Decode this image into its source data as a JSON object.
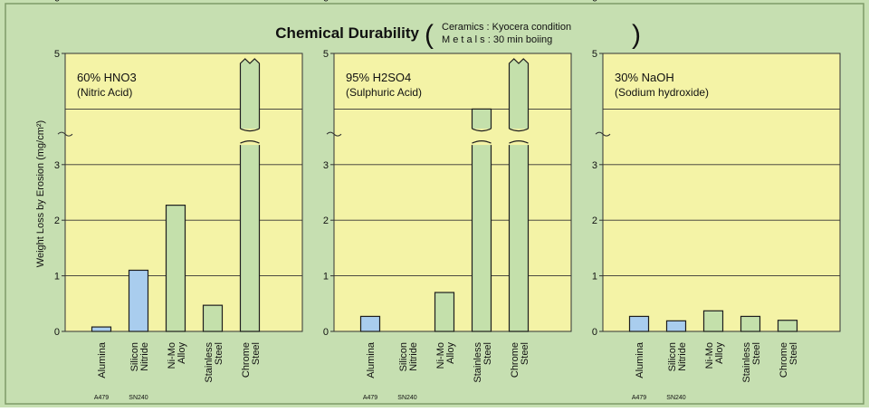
{
  "title": "Chemical Durability",
  "conditions": [
    "Ceramics : Kyocera condition",
    "M e t a l s : 30 min boiing"
  ],
  "ylabel": "Weight Loss by Erosion (mg/cm²)",
  "colors": {
    "background": "#c6dfb1",
    "plot_area": "#f4f3a6",
    "frame": "#7f9b68",
    "ceramic_bar": "#a9cdee",
    "metal_bar": "#c4e0ab",
    "bar_edge": "#1e1e1e"
  },
  "chart_data": [
    {
      "type": "bar",
      "title_line1": "60% HNO3",
      "title_line2": "(Nitric Acid)",
      "categories": [
        {
          "name": "Alumina",
          "grade": "A479",
          "material": "ceramic"
        },
        {
          "name": "Silicon Nitride",
          "grade": "SN240",
          "material": "ceramic"
        },
        {
          "name": "Ni-Mo Alloy",
          "grade": "",
          "material": "metal"
        },
        {
          "name": "Stainless Steel",
          "grade": "",
          "material": "metal"
        },
        {
          "name": "Chrome Steel",
          "grade": "",
          "material": "metal"
        }
      ],
      "values": [
        0.08,
        1.1,
        2.27,
        0.47,
        null
      ],
      "off_scale": [
        false,
        false,
        false,
        false,
        true
      ],
      "yticks": [
        "0",
        "1",
        "2",
        "3",
        "5",
        "6"
      ],
      "ylim": [
        0,
        6
      ],
      "axis_break": [
        3.5,
        4.5
      ],
      "grid": true
    },
    {
      "type": "bar",
      "title_line1": "95% H2SO4",
      "title_line2": "(Sulphuric Acid)",
      "categories": [
        {
          "name": "Alumina",
          "grade": "A479",
          "material": "ceramic"
        },
        {
          "name": "Silicon Nitride",
          "grade": "SN240",
          "material": "ceramic"
        },
        {
          "name": "Ni-Mo Alloy",
          "grade": "",
          "material": "metal"
        },
        {
          "name": "Stainless Steel",
          "grade": "",
          "material": "metal"
        },
        {
          "name": "Chrome Steel",
          "grade": "",
          "material": "metal"
        }
      ],
      "values": [
        0.27,
        0,
        0.7,
        5.0,
        null
      ],
      "off_scale": [
        false,
        false,
        false,
        false,
        true
      ],
      "yticks": [
        "0",
        "1",
        "2",
        "3",
        "5",
        "6"
      ],
      "ylim": [
        0,
        6
      ],
      "axis_break": [
        3.5,
        4.5
      ],
      "grid": true
    },
    {
      "type": "bar",
      "title_line1": "30% NaOH",
      "title_line2": "(Sodium hydroxide)",
      "categories": [
        {
          "name": "Alumina",
          "grade": "A479",
          "material": "ceramic"
        },
        {
          "name": "Silicon Nitride",
          "grade": "SN240",
          "material": "ceramic"
        },
        {
          "name": "Ni-Mo Alloy",
          "grade": "",
          "material": "metal"
        },
        {
          "name": "Stainless Steel",
          "grade": "",
          "material": "metal"
        },
        {
          "name": "Chrome Steel",
          "grade": "",
          "material": "metal"
        }
      ],
      "values": [
        0.27,
        0.19,
        0.37,
        0.27,
        0.2
      ],
      "off_scale": [
        false,
        false,
        false,
        false,
        false
      ],
      "yticks": [
        "0",
        "1",
        "2",
        "3",
        "5",
        "6"
      ],
      "ylim": [
        0,
        6
      ],
      "axis_break": [
        3.5,
        4.5
      ],
      "grid": true
    }
  ]
}
